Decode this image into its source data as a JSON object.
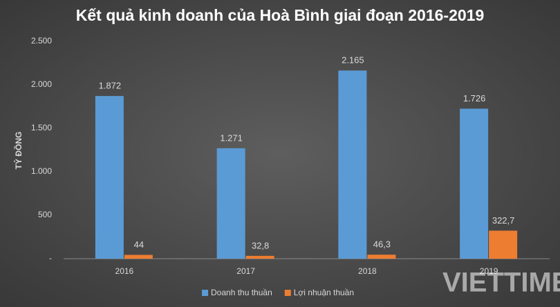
{
  "chart_data": {
    "type": "bar",
    "title": "Kết quả kinh doanh của Hoà Bình giai đoạn 2016-2019",
    "y_label": "TỶ ĐỒNG",
    "categories": [
      "2016",
      "2017",
      "2018",
      "2019"
    ],
    "series": [
      {
        "name": "Doanh thu thuần",
        "color": "#5b9bd5",
        "values": [
          1872,
          1271,
          2165,
          1726
        ],
        "value_labels": [
          "1.872",
          "1.271",
          "2.165",
          "1.726"
        ]
      },
      {
        "name": "Lợi nhuận thuần",
        "color": "#ed7d31",
        "values": [
          44,
          32.8,
          46.3,
          322.7
        ],
        "value_labels": [
          "44",
          "32,8",
          "46,3",
          "322,7"
        ]
      }
    ],
    "ylim": [
      0,
      2500
    ],
    "yticks": [
      {
        "value": 0,
        "label": "-"
      },
      500,
      {
        "value": 1000,
        "label": "1.000"
      },
      {
        "value": 1500,
        "label": "1.500"
      },
      {
        "value": 2000,
        "label": "2.000"
      },
      {
        "value": 2500,
        "label": "2.500"
      }
    ],
    "grid": false,
    "legend": "bottom",
    "watermark": "VIETTIMES"
  }
}
